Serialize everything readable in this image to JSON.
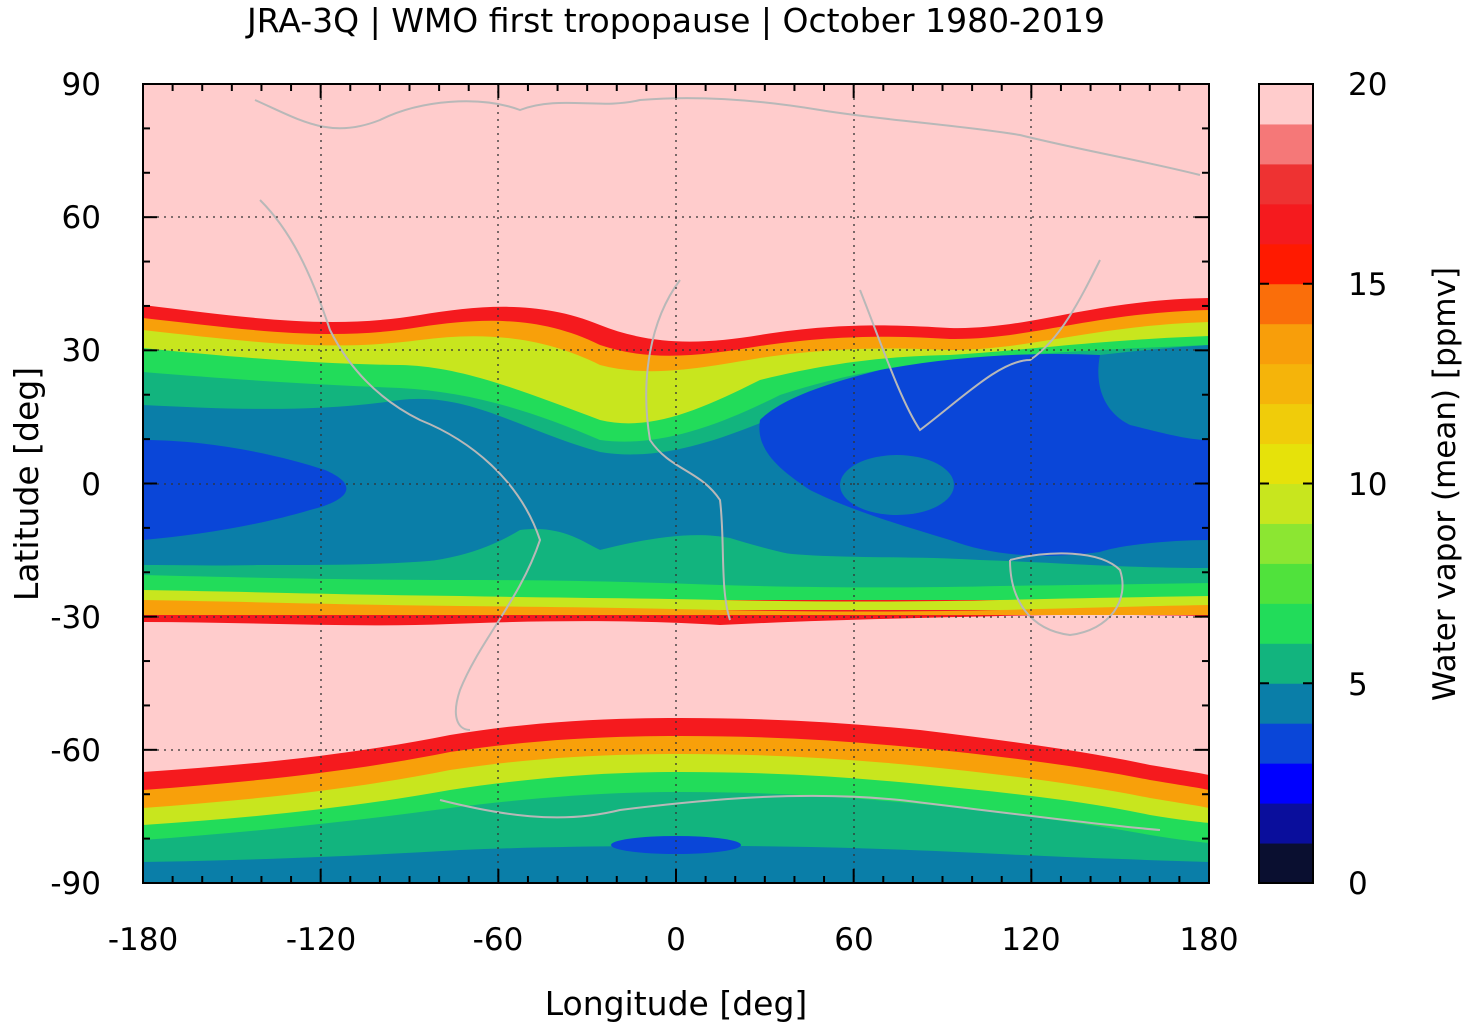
{
  "chart_data": {
    "type": "heatmap",
    "title": "JRA-3Q | WMO first tropopause | October 1980-2019",
    "xlabel": "Longitude [deg]",
    "ylabel": "Latitude [deg]",
    "colorbar_label": "Water vapor (mean) [ppmv]",
    "xlim": [
      -180,
      180
    ],
    "ylim": [
      -90,
      90
    ],
    "clim": [
      0,
      20
    ],
    "x_ticks": [
      -180,
      -120,
      -60,
      0,
      60,
      120,
      180
    ],
    "y_ticks": [
      90,
      60,
      30,
      0,
      -30,
      -60,
      -90
    ],
    "colorbar_ticks": [
      20,
      15,
      10,
      5,
      0
    ],
    "grid": true,
    "colorbar_levels": [
      {
        "range": [
          0,
          1
        ],
        "color": "#0a0f30"
      },
      {
        "range": [
          1,
          2
        ],
        "color": "#0a0e9c"
      },
      {
        "range": [
          2,
          3
        ],
        "color": "#0000ff"
      },
      {
        "range": [
          3,
          4
        ],
        "color": "#0a46d8"
      },
      {
        "range": [
          4,
          5
        ],
        "color": "#0a7ea8"
      },
      {
        "range": [
          5,
          6
        ],
        "color": "#12b47e"
      },
      {
        "range": [
          6,
          7
        ],
        "color": "#22dc5a"
      },
      {
        "range": [
          7,
          8
        ],
        "color": "#50e23c"
      },
      {
        "range": [
          8,
          9
        ],
        "color": "#8ce632"
      },
      {
        "range": [
          9,
          10
        ],
        "color": "#c8e61e"
      },
      {
        "range": [
          10,
          11
        ],
        "color": "#e6e20a"
      },
      {
        "range": [
          11,
          12
        ],
        "color": "#f0cc0a"
      },
      {
        "range": [
          12,
          13
        ],
        "color": "#f5b40a"
      },
      {
        "range": [
          13,
          14
        ],
        "color": "#f89e0a"
      },
      {
        "range": [
          14,
          15
        ],
        "color": "#fa6e0a"
      },
      {
        "range": [
          15,
          16
        ],
        "color": "#ff1a00"
      },
      {
        "range": [
          16,
          17
        ],
        "color": "#f51a1e"
      },
      {
        "range": [
          17,
          18
        ],
        "color": "#ee3232"
      },
      {
        "range": [
          18,
          19
        ],
        "color": "#f57878"
      },
      {
        "range": [
          19,
          20
        ],
        "color": "#ffcccc"
      }
    ],
    "field_regions": [
      {
        "name": "north-extratropics",
        "value": 20
      },
      {
        "name": "subtropical-gradient",
        "value": 10
      },
      {
        "name": "tropics",
        "value": 4.5
      },
      {
        "name": "tropical-minimum",
        "value": 3.5
      },
      {
        "name": "south-extratropics",
        "value": 20
      },
      {
        "name": "antarctic",
        "value": 5.5
      }
    ]
  }
}
